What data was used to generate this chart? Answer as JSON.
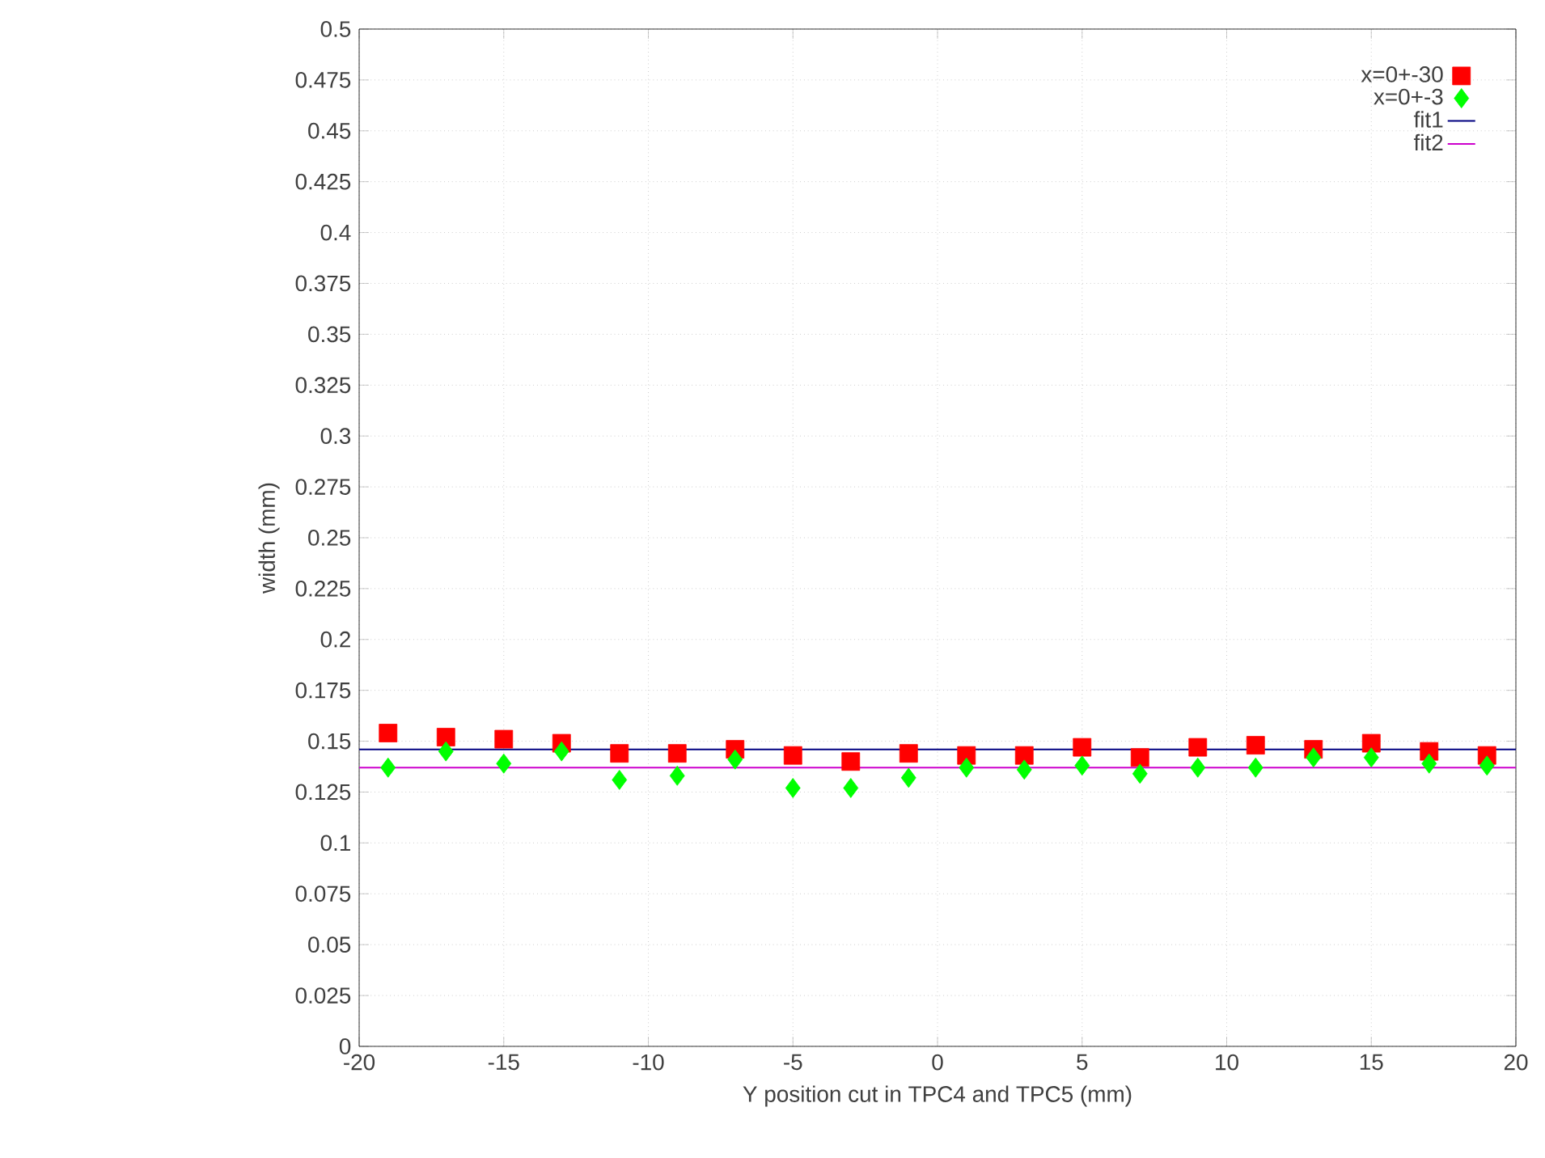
{
  "chart_data": {
    "type": "scatter",
    "xlabel": "Y position cut in TPC4 and TPC5 (mm)",
    "ylabel": "width (mm)",
    "xlim": [
      -20,
      20
    ],
    "ylim": [
      0,
      0.5
    ],
    "xticks": [
      -20,
      -15,
      -10,
      -5,
      0,
      5,
      10,
      15,
      20
    ],
    "yticks": [
      0,
      0.025,
      0.05,
      0.075,
      0.1,
      0.125,
      0.15,
      0.175,
      0.2,
      0.225,
      0.25,
      0.275,
      0.3,
      0.325,
      0.35,
      0.375,
      0.4,
      0.425,
      0.45,
      0.475,
      0.5
    ],
    "grid": true,
    "legend": "top right",
    "x": [
      -19,
      -17,
      -15,
      -13,
      -11,
      -9,
      -7,
      -5,
      -3,
      -1,
      1,
      3,
      5,
      7,
      9,
      11,
      13,
      15,
      17,
      19
    ],
    "series": [
      {
        "name": "x=0+-30",
        "color": "#ff0000",
        "marker": "square",
        "values": [
          0.154,
          0.152,
          0.151,
          0.149,
          0.144,
          0.144,
          0.146,
          0.143,
          0.14,
          0.144,
          0.143,
          0.143,
          0.147,
          0.142,
          0.147,
          0.148,
          0.146,
          0.149,
          0.145,
          0.143
        ]
      },
      {
        "name": "x=0+-3",
        "color": "#00ff00",
        "marker": "diamond",
        "values": [
          0.137,
          0.145,
          0.139,
          0.145,
          0.131,
          0.133,
          0.141,
          0.127,
          0.127,
          0.132,
          0.137,
          0.136,
          0.138,
          0.134,
          0.137,
          0.137,
          0.142,
          0.142,
          0.139,
          0.138
        ]
      }
    ],
    "ref_lines": [
      {
        "axis": "y",
        "value": 0.146,
        "label": "fit1",
        "color": "#000080"
      },
      {
        "axis": "y",
        "value": 0.137,
        "label": "fit2",
        "color": "#cc00cc"
      }
    ]
  }
}
